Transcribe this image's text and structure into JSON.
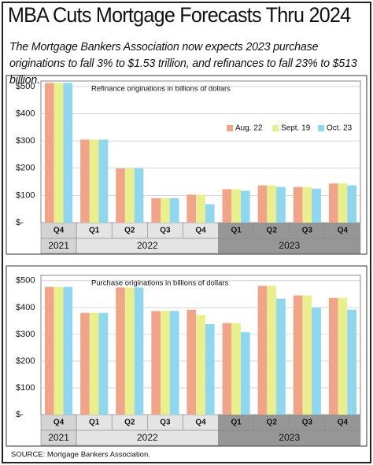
{
  "title": "MBA Cuts Mortgage Forecasts Thru 2024",
  "subtitle": "The Mortgage Bankers Association now expects 2023 purchase  originations to fall 3% to $1.53 trillion, and refinances to fall 23% to $513 billion.",
  "source": "SOURCE: Mortgage Bankers Association.",
  "chart_data": [
    {
      "type": "bar",
      "title": "Refinance originations in billions of dollars",
      "groups": [
        {
          "name": "2021",
          "color": "#d4d4d4",
          "categories": [
            "Q4"
          ]
        },
        {
          "name": "2022",
          "color": "#e4e4e4",
          "categories": [
            "Q1",
            "Q2",
            "Q3",
            "Q4"
          ]
        },
        {
          "name": "2023",
          "color": "#969696",
          "categories": [
            "Q1",
            "Q2",
            "Q3",
            "Q4"
          ]
        }
      ],
      "series": [
        {
          "name": "Aug. 22",
          "color": "#f0a58a",
          "values": [
            513,
            305,
            199,
            90,
            103,
            123,
            137,
            131,
            144
          ]
        },
        {
          "name": "Sept. 19",
          "color": "#eaef8e",
          "values": [
            513,
            305,
            199,
            90,
            103,
            123,
            137,
            131,
            144
          ]
        },
        {
          "name": "Oct. 23",
          "color": "#8fd6ee",
          "values": [
            513,
            305,
            199,
            90,
            68,
            117,
            131,
            125,
            137
          ]
        }
      ],
      "ylim": [
        0,
        520
      ],
      "yticks": [
        {
          "value": 0,
          "label": "$-"
        },
        {
          "value": 100,
          "label": "$100"
        },
        {
          "value": 200,
          "label": "$200"
        },
        {
          "value": 300,
          "label": "$300"
        },
        {
          "value": 400,
          "label": "$400"
        },
        {
          "value": 500,
          "label": "$500"
        }
      ],
      "grid": true,
      "legend": "right"
    },
    {
      "type": "bar",
      "title": "Purchase originations in billions of dollars",
      "groups": [
        {
          "name": "2021",
          "color": "#d4d4d4",
          "categories": [
            "Q4"
          ]
        },
        {
          "name": "2022",
          "color": "#e4e4e4",
          "categories": [
            "Q1",
            "Q2",
            "Q3",
            "Q4"
          ]
        },
        {
          "name": "2023",
          "color": "#969696",
          "categories": [
            "Q1",
            "Q2",
            "Q3",
            "Q4"
          ]
        }
      ],
      "series": [
        {
          "color": "#f0a58a",
          "values": [
            477,
            380,
            475,
            387,
            392,
            342,
            481,
            445,
            436
          ]
        },
        {
          "color": "#eaef8e",
          "values": [
            477,
            380,
            475,
            387,
            372,
            342,
            481,
            445,
            436
          ]
        },
        {
          "color": "#8fd6ee",
          "values": [
            477,
            380,
            475,
            387,
            338,
            308,
            433,
            400,
            392
          ]
        }
      ],
      "ylim": [
        0,
        520
      ],
      "yticks": [
        {
          "value": 0,
          "label": "$-"
        },
        {
          "value": 100,
          "label": "$100"
        },
        {
          "value": 200,
          "label": "$200"
        },
        {
          "value": 300,
          "label": "$300"
        },
        {
          "value": 400,
          "label": "$400"
        },
        {
          "value": 500,
          "label": "$500"
        }
      ],
      "grid": true
    }
  ]
}
